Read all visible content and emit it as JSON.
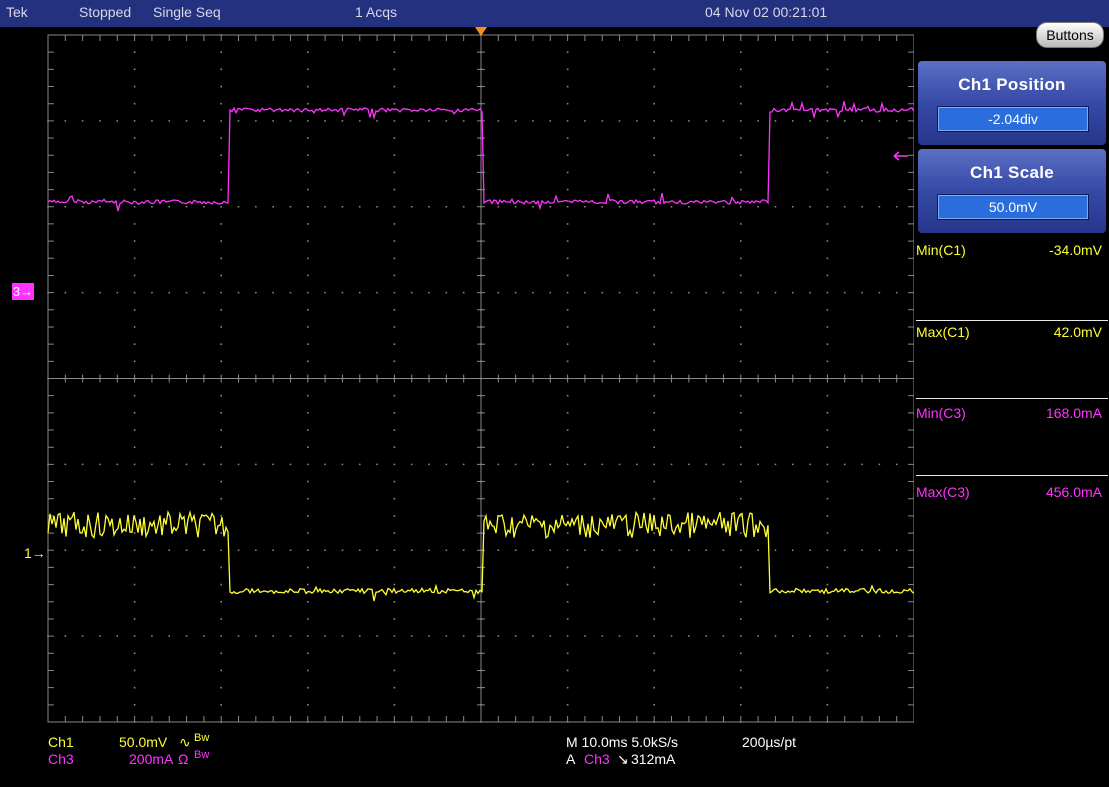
{
  "status_bar": {
    "brand": "Tek",
    "state": "Stopped",
    "mode": "Single Seq",
    "acqs": "1 Acqs",
    "datetime": "04 Nov 02 00:21:01"
  },
  "buttons_label": "Buttons",
  "controls": [
    {
      "title": "Ch1 Position",
      "value": "-2.04div"
    },
    {
      "title": "Ch1 Scale",
      "value": "50.0mV"
    }
  ],
  "measurements": [
    {
      "label": "Min(C1)",
      "value": "-34.0mV",
      "color": "#ffff33"
    },
    {
      "label": "Max(C1)",
      "value": "42.0mV",
      "color": "#ffff33"
    },
    {
      "label": "Min(C3)",
      "value": "168.0mA",
      "color": "#ff33ff"
    },
    {
      "label": "Max(C3)",
      "value": "456.0mA",
      "color": "#ff33ff"
    }
  ],
  "channels": [
    {
      "name": "Ch1",
      "scale": "50.0mV",
      "coupling": "∿",
      "bw": "Bw",
      "color": "#ffff33"
    },
    {
      "name": "Ch3",
      "scale": "200mA",
      "coupling": "Ω",
      "bw": "Bw",
      "color": "#ff33ff"
    }
  ],
  "timebase": {
    "horizontal": "M 10.0ms 5.0kS/s",
    "resolution": "200µs/pt"
  },
  "trigger": {
    "prefix": "A",
    "source": "Ch3",
    "slope": "↘",
    "level": "312mA"
  },
  "markers": {
    "ch1": "1",
    "ch3": "3"
  },
  "colors": {
    "ch1": "#ffff33",
    "ch3": "#ff33ff",
    "header": "#24317f",
    "grid": "#888888"
  },
  "waveform_data": {
    "divisions": {
      "horizontal": 10,
      "vertical": 8
    },
    "ch3_square_wave": {
      "period_div": 5.0,
      "high_div": [
        1.0,
        3.0
      ]
    },
    "ch1_square_wave": {
      "period_div": 5.0,
      "high_div": [
        1.0,
        3.0
      ]
    }
  }
}
